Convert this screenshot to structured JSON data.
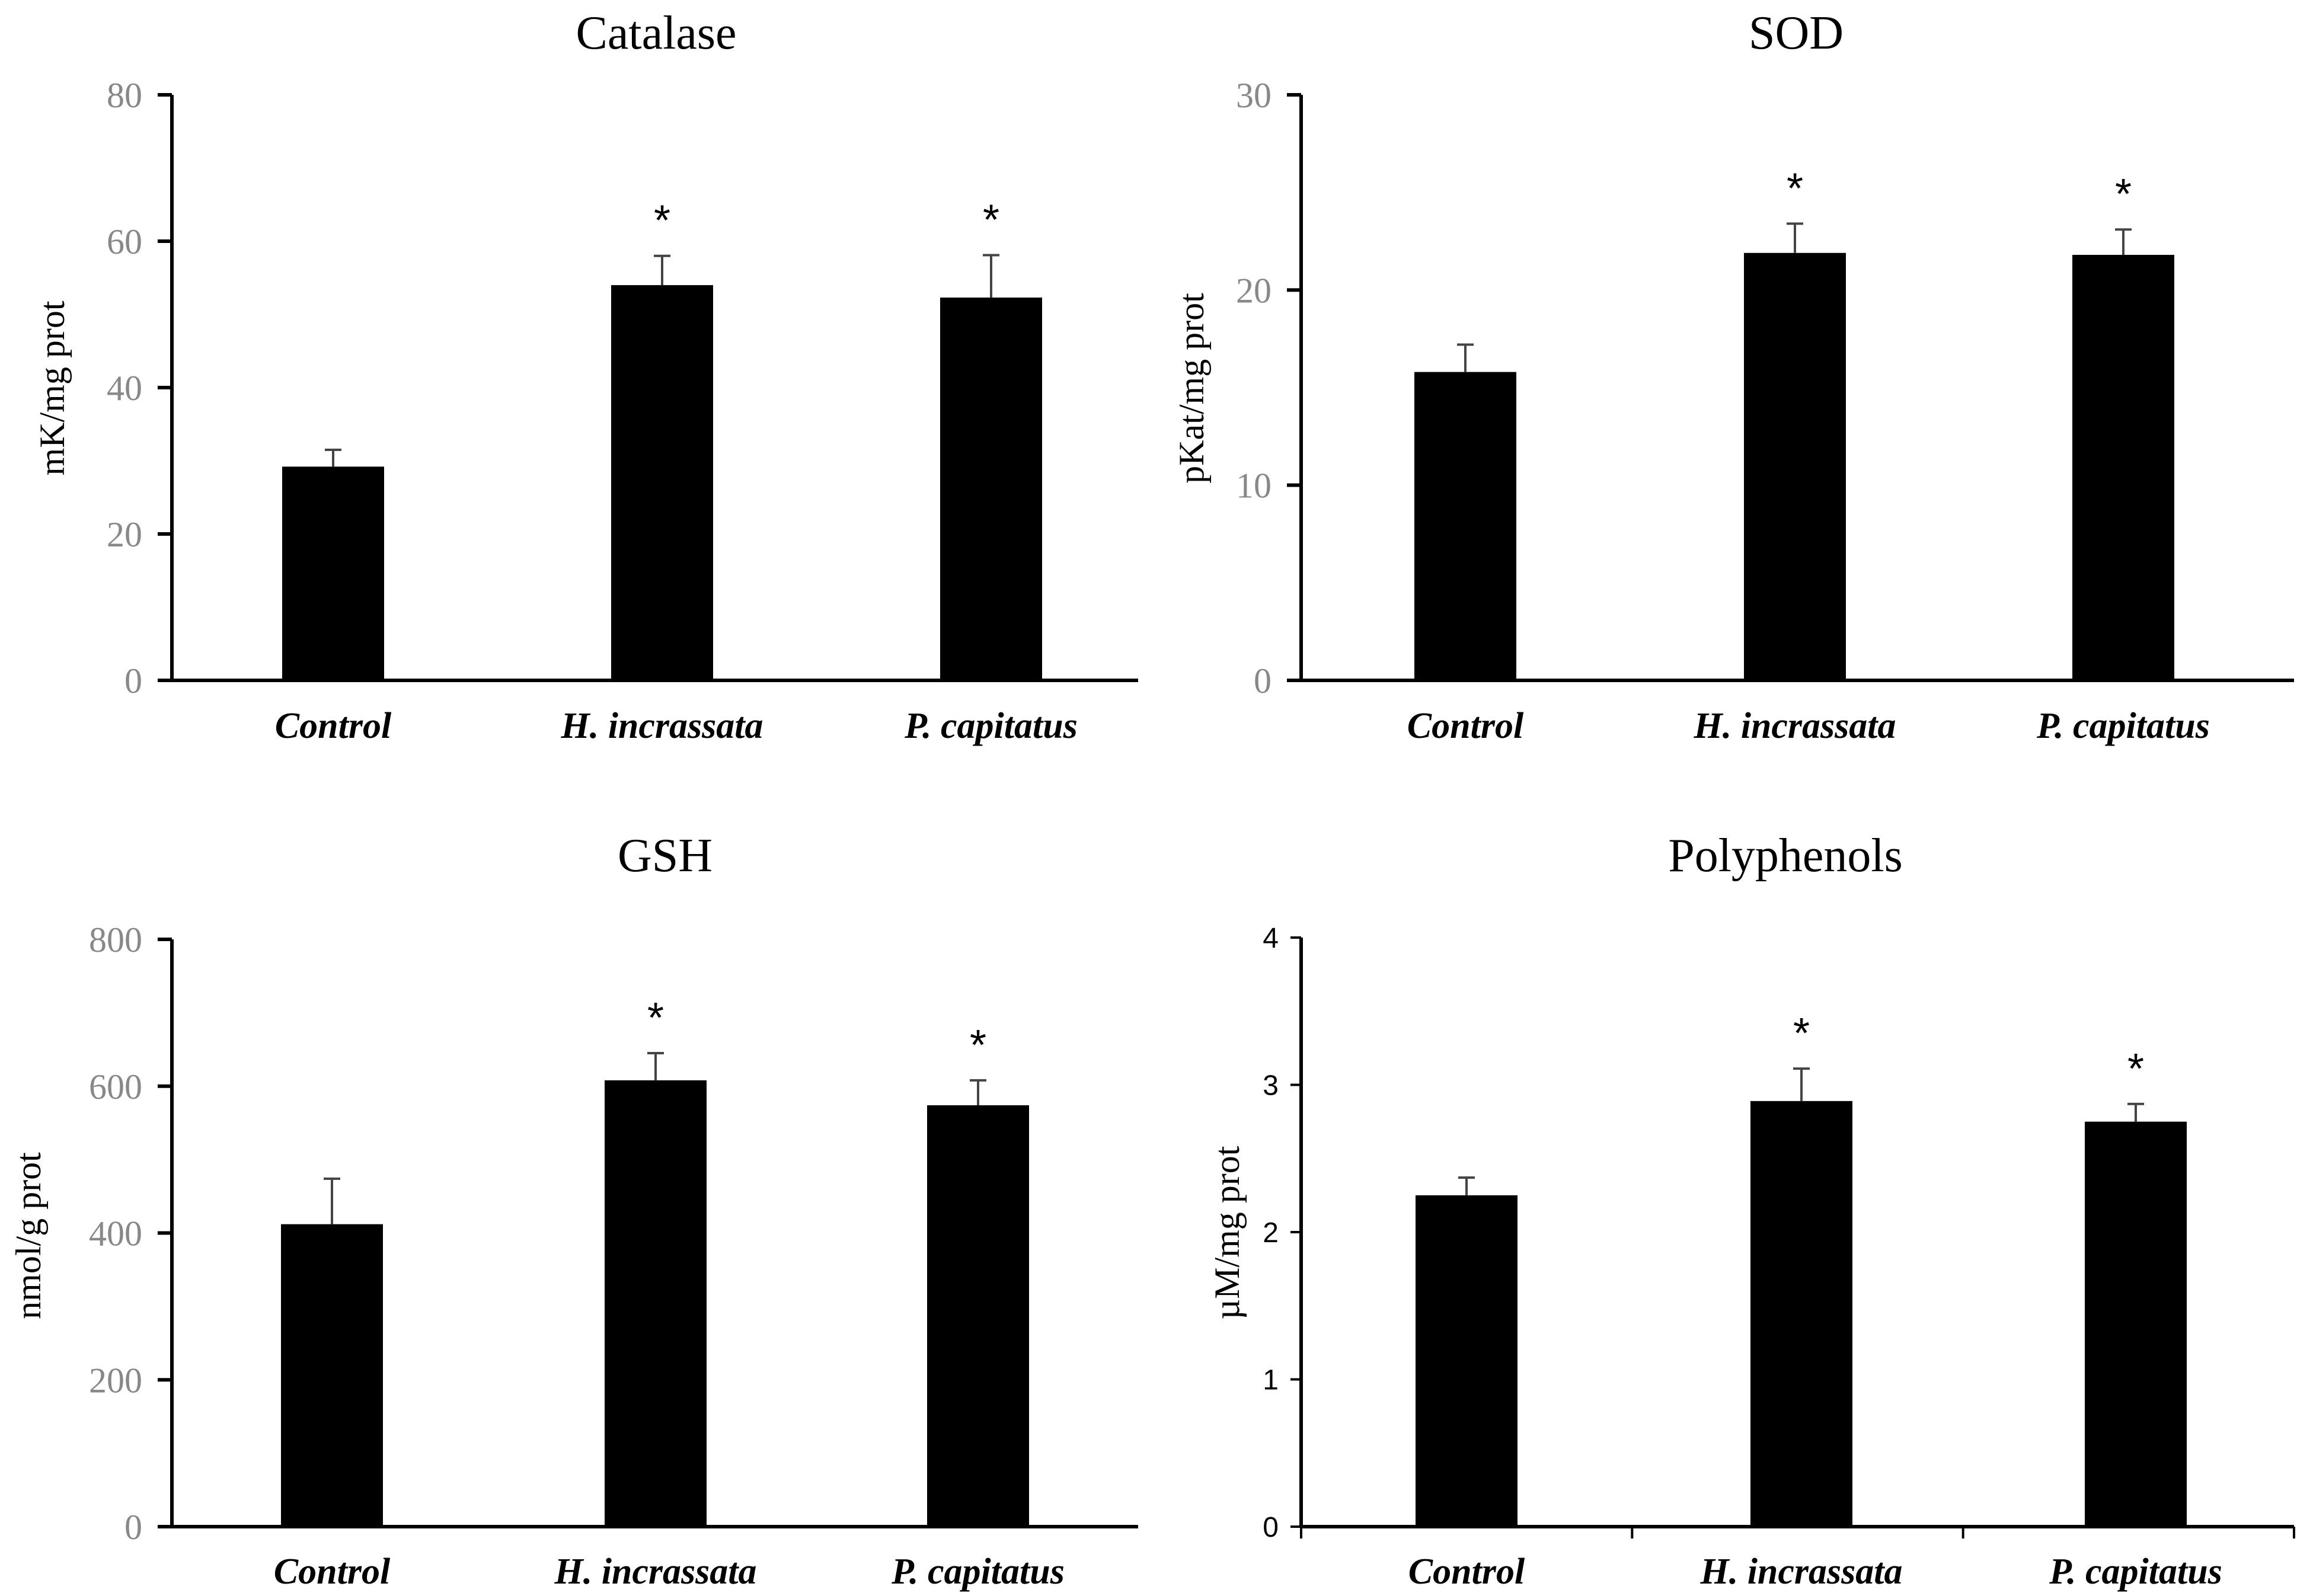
{
  "chart_data": [
    {
      "type": "bar",
      "title": "Catalase",
      "ylabel": "mK/mg prot",
      "xlabel": "",
      "categories": [
        "Control",
        "H. incrassata",
        "P. capitatus"
      ],
      "values": [
        29.2,
        54.0,
        52.3
      ],
      "errors": [
        2.3,
        4.0,
        5.8
      ],
      "significance": [
        "",
        "*",
        "*"
      ],
      "ylim": [
        0,
        80
      ],
      "yticks": [
        "0",
        "20",
        "40",
        "60",
        "80"
      ],
      "grid": false
    },
    {
      "type": "bar",
      "title": "SOD",
      "ylabel": "pKat/mg prot",
      "xlabel": "",
      "categories": [
        "Control",
        "H. incrassata",
        "P. capitatus"
      ],
      "values": [
        15.8,
        21.9,
        21.8
      ],
      "errors": [
        1.4,
        1.5,
        1.3
      ],
      "significance": [
        "",
        "*",
        "*"
      ],
      "ylim": [
        0,
        30
      ],
      "yticks": [
        "0",
        "10",
        "20",
        "30"
      ],
      "grid": false
    },
    {
      "type": "bar",
      "title": "GSH",
      "ylabel": "nmol/g prot",
      "xlabel": "",
      "categories": [
        "Control",
        "H. incrassata",
        "P. capitatus"
      ],
      "values": [
        412,
        608,
        574
      ],
      "errors": [
        62,
        37,
        34
      ],
      "significance": [
        "",
        "*",
        "*"
      ],
      "ylim": [
        0,
        800
      ],
      "yticks": [
        "0",
        "200",
        "400",
        "600",
        "800"
      ],
      "grid": false
    },
    {
      "type": "bar",
      "title": "Polyphenols",
      "ylabel": "µM/mg prot",
      "xlabel": "",
      "categories": [
        "Control",
        "H. incrassata",
        "P. capitatus"
      ],
      "values": [
        2.25,
        2.89,
        2.75
      ],
      "errors": [
        0.12,
        0.22,
        0.12
      ],
      "significance": [
        "",
        "*",
        "*"
      ],
      "ylim": [
        0,
        4
      ],
      "yticks": [
        "0",
        "1",
        "2",
        "3",
        "4"
      ],
      "grid": false
    }
  ]
}
